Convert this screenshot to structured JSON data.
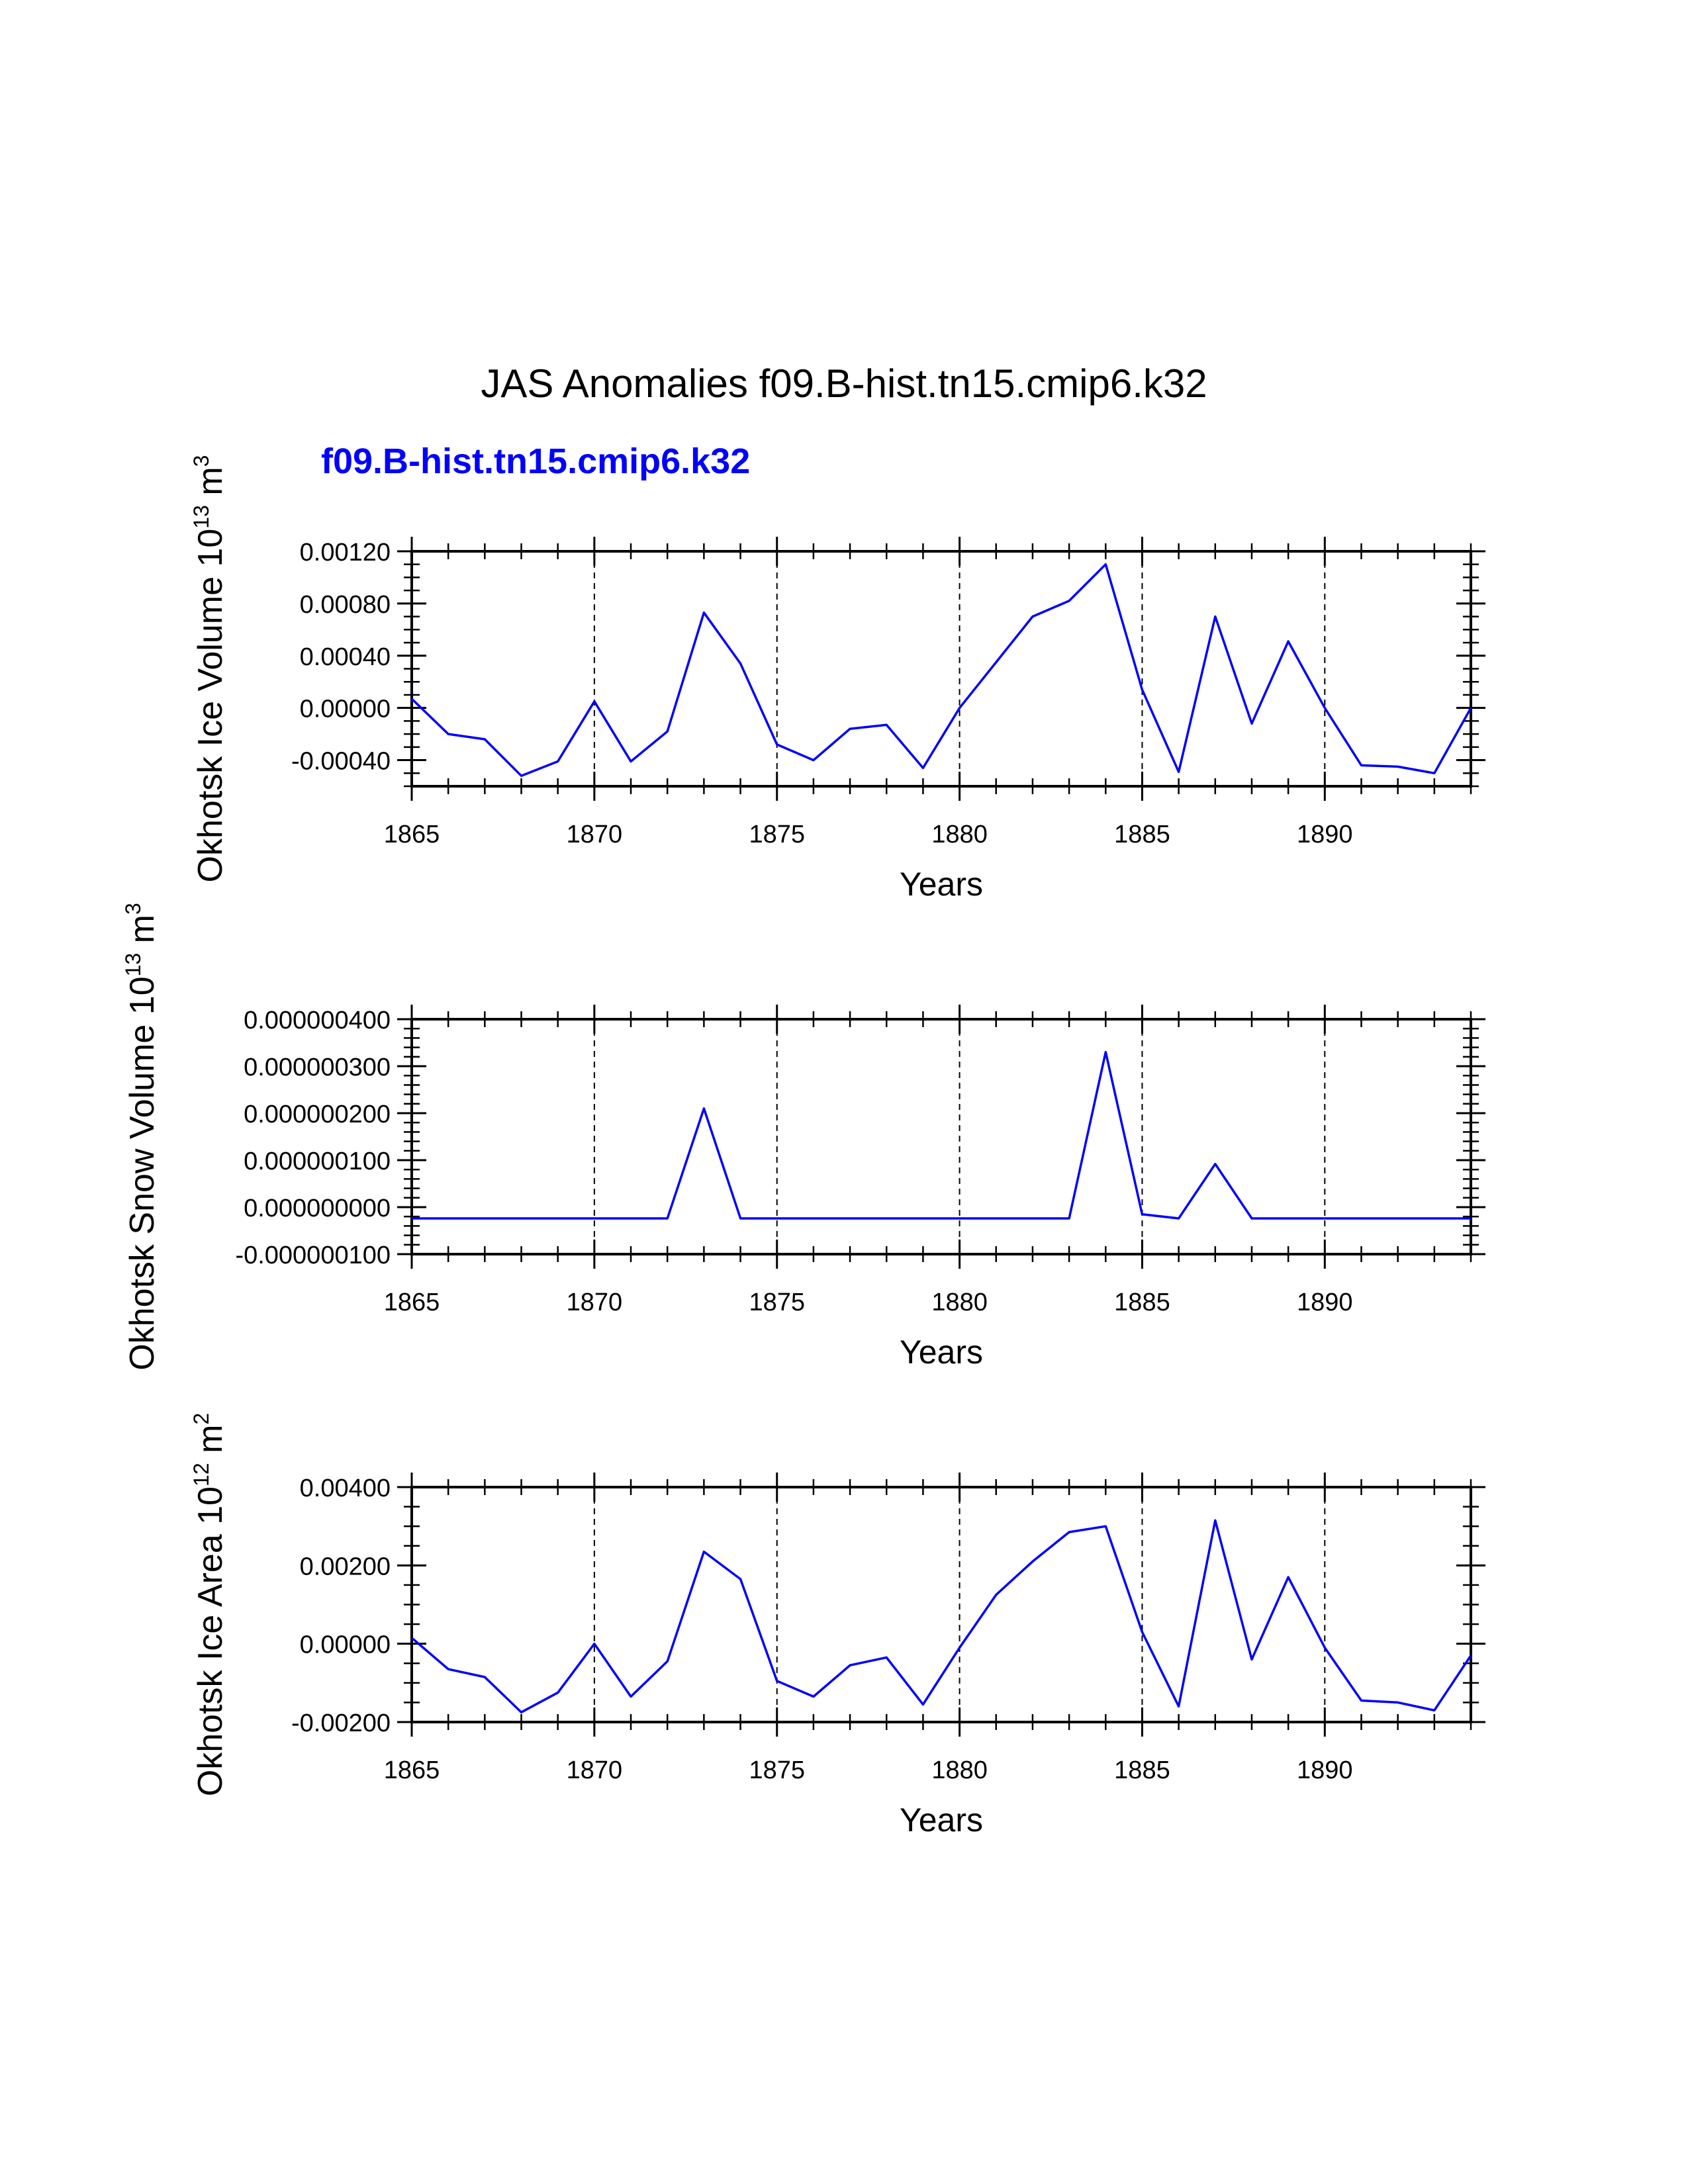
{
  "title": "JAS Anomalies f09.B-hist.tn15.cmip6.k32",
  "series_label": "f09.B-hist.tn15.cmip6.k32",
  "colors": {
    "series": "#0000ff",
    "text": "#000000",
    "background": "#ffffff"
  },
  "chart_data": [
    {
      "type": "line",
      "ylabel": {
        "text": "Okhotsk Ice Volume 10",
        "sup1": "13",
        "unit": " m",
        "sup2": "3"
      },
      "xlabel": "Years",
      "xlim": [
        1865,
        1894
      ],
      "x_ticks": [
        1865,
        1870,
        1875,
        1880,
        1885,
        1890
      ],
      "ylim": [
        -0.0006,
        0.0012
      ],
      "y_ticks": [
        -0.0004,
        0.0,
        0.0004,
        0.0008,
        0.0012
      ],
      "y_tick_labels": [
        "-0.00040",
        "0.00000",
        "0.00040",
        "0.00080",
        "0.00120"
      ],
      "y_minor_step": 0.0001,
      "grid": "dashed vertical at major x ticks",
      "x": [
        1865,
        1866,
        1867,
        1868,
        1869,
        1870,
        1871,
        1872,
        1873,
        1874,
        1875,
        1876,
        1877,
        1878,
        1879,
        1880,
        1881,
        1882,
        1883,
        1884,
        1885,
        1886,
        1887,
        1888,
        1889,
        1890,
        1891,
        1892,
        1893,
        1894
      ],
      "series": [
        {
          "name": "f09.B-hist.tn15.cmip6.k32",
          "values": [
            7e-05,
            -0.0002,
            -0.00024,
            -0.00052,
            -0.00041,
            5e-05,
            -0.00041,
            -0.00018,
            0.00073,
            0.00034,
            -0.00028,
            -0.0004,
            -0.00016,
            -0.00013,
            -0.00046,
            0.0,
            0.00035,
            0.0007,
            0.00082,
            0.0011,
            0.00014,
            -0.00049,
            0.0007,
            -0.00012,
            0.00051,
            0.0,
            -0.00044,
            -0.00045,
            -0.0005,
            0.0
          ]
        }
      ]
    },
    {
      "type": "line",
      "ylabel": {
        "text": "Okhotsk Snow Volume 10",
        "sup1": "13",
        "unit": " m",
        "sup2": "3"
      },
      "xlabel": "Years",
      "xlim": [
        1865,
        1894
      ],
      "x_ticks": [
        1865,
        1870,
        1875,
        1880,
        1885,
        1890
      ],
      "ylim": [
        -1e-07,
        4e-07
      ],
      "y_ticks": [
        -1e-07,
        0.0,
        1e-07,
        2e-07,
        3e-07,
        4e-07
      ],
      "y_tick_labels": [
        "-0.000000100",
        "0.000000000",
        "0.000000100",
        "0.000000200",
        "0.000000300",
        "0.000000400"
      ],
      "y_minor_step": 2e-08,
      "grid": "dashed vertical at major x ticks",
      "x": [
        1865,
        1866,
        1867,
        1868,
        1869,
        1870,
        1871,
        1872,
        1873,
        1874,
        1875,
        1876,
        1877,
        1878,
        1879,
        1880,
        1881,
        1882,
        1883,
        1884,
        1885,
        1886,
        1887,
        1888,
        1889,
        1890,
        1891,
        1892,
        1893,
        1894
      ],
      "series": [
        {
          "name": "f09.B-hist.tn15.cmip6.k32",
          "values": [
            -2.4e-08,
            -2.4e-08,
            -2.4e-08,
            -2.4e-08,
            -2.4e-08,
            -2.4e-08,
            -2.4e-08,
            -2.4e-08,
            2.1e-07,
            -2.4e-08,
            -2.4e-08,
            -2.4e-08,
            -2.4e-08,
            -2.4e-08,
            -2.4e-08,
            -2.4e-08,
            -2.4e-08,
            -2.4e-08,
            -2.4e-08,
            3.3e-07,
            -1.5e-08,
            -2.4e-08,
            9.2e-08,
            -2.4e-08,
            -2.4e-08,
            -2.4e-08,
            -2.4e-08,
            -2.4e-08,
            -2.4e-08,
            -2.4e-08
          ]
        }
      ]
    },
    {
      "type": "line",
      "ylabel": {
        "text": "Okhotsk Ice Area 10",
        "sup1": "12",
        "unit": " m",
        "sup2": "2"
      },
      "xlabel": "Years",
      "xlim": [
        1865,
        1894
      ],
      "x_ticks": [
        1865,
        1870,
        1875,
        1880,
        1885,
        1890
      ],
      "ylim": [
        -0.002,
        0.004
      ],
      "y_ticks": [
        -0.002,
        0.0,
        0.002,
        0.004
      ],
      "y_tick_labels": [
        "-0.00200",
        "0.00000",
        "0.00200",
        "0.00400"
      ],
      "y_minor_step": 0.0005,
      "grid": "dashed vertical at major x ticks",
      "x": [
        1865,
        1866,
        1867,
        1868,
        1869,
        1870,
        1871,
        1872,
        1873,
        1874,
        1875,
        1876,
        1877,
        1878,
        1879,
        1880,
        1881,
        1882,
        1883,
        1884,
        1885,
        1886,
        1887,
        1888,
        1889,
        1890,
        1891,
        1892,
        1893,
        1894
      ],
      "series": [
        {
          "name": "f09.B-hist.tn15.cmip6.k32",
          "values": [
            0.00015,
            -0.00065,
            -0.00085,
            -0.00175,
            -0.00125,
            0.0,
            -0.00135,
            -0.00045,
            0.00235,
            0.00165,
            -0.00095,
            -0.00135,
            -0.00055,
            -0.00035,
            -0.00155,
            -0.0001,
            0.00125,
            0.0021,
            0.00285,
            0.003,
            0.0003,
            -0.0016,
            0.00315,
            -0.0004,
            0.0017,
            -0.0001,
            -0.00145,
            -0.0015,
            -0.0017,
            -0.0003
          ]
        }
      ]
    }
  ]
}
